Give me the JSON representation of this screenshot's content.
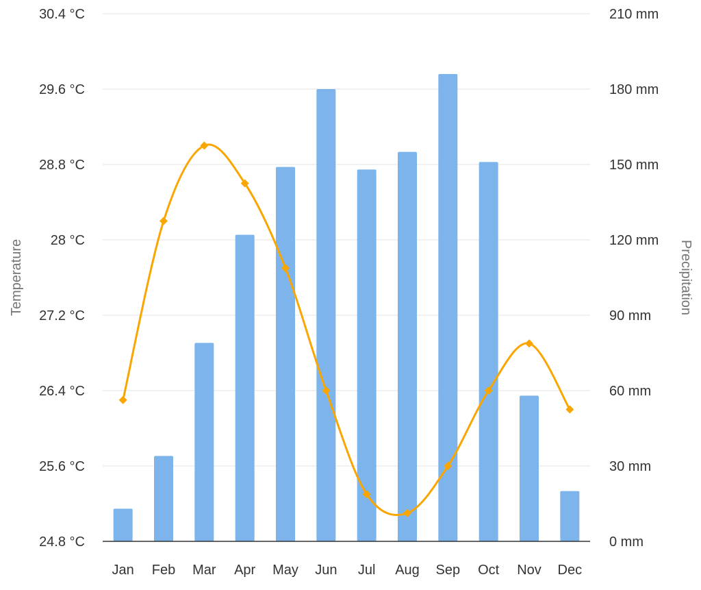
{
  "chart_data": {
    "type": "bar+line",
    "categories": [
      "Jan",
      "Feb",
      "Mar",
      "Apr",
      "May",
      "Jun",
      "Jul",
      "Aug",
      "Sep",
      "Oct",
      "Nov",
      "Dec"
    ],
    "series": [
      {
        "name": "Precipitation",
        "type": "bar",
        "axis": "right",
        "values": [
          13,
          34,
          79,
          122,
          149,
          180,
          148,
          155,
          186,
          151,
          58,
          20
        ],
        "color": "#7eb4ec"
      },
      {
        "name": "Temperature",
        "type": "line",
        "axis": "left",
        "values": [
          26.3,
          28.2,
          29.0,
          28.6,
          27.7,
          26.4,
          25.3,
          25.1,
          25.6,
          26.4,
          26.9,
          26.2
        ],
        "color": "#f9a602"
      }
    ],
    "left_axis": {
      "title": "Temperature",
      "ticks": [
        "24.8 °C",
        "25.6 °C",
        "26.4 °C",
        "27.2 °C",
        "28 °C",
        "28.8 °C",
        "29.6 °C",
        "30.4 °C"
      ],
      "range": [
        24.8,
        30.4
      ]
    },
    "right_axis": {
      "title": "Precipitation",
      "ticks": [
        "0 mm",
        "30 mm",
        "60 mm",
        "90 mm",
        "120 mm",
        "150 mm",
        "180 mm",
        "210 mm"
      ],
      "range": [
        0,
        210
      ]
    },
    "grid": true,
    "legend": "none"
  }
}
